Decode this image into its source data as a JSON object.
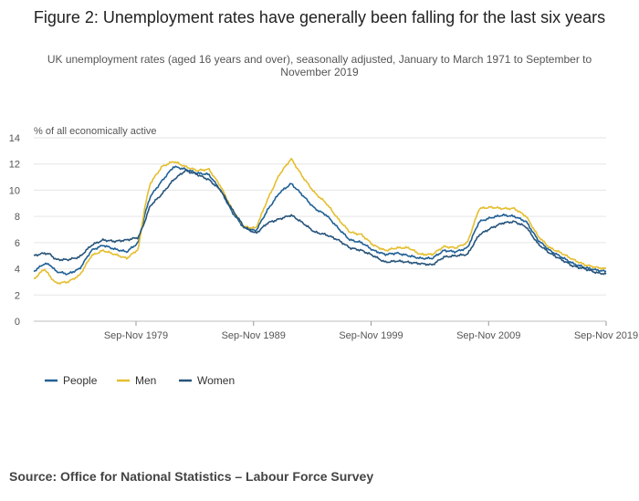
{
  "figure": {
    "title": "Figure 2: Unemployment rates have generally been falling for the last six years",
    "subtitle": "UK unemployment rates (aged 16 years and over), seasonally adjusted, January to March 1971 to September to November 2019",
    "source": "Source: Office for National Statistics – Labour Force Survey"
  },
  "chart_data": {
    "type": "line",
    "ylabel": "% of all economically active",
    "xlabel": "",
    "ylim": [
      0,
      14
    ],
    "yticks": [
      0,
      2,
      4,
      6,
      8,
      10,
      12,
      14
    ],
    "xlim": [
      1971.1,
      2019.8
    ],
    "xticks": [
      {
        "x": 1979.8,
        "label": "Sep-Nov 1979"
      },
      {
        "x": 1989.8,
        "label": "Sep-Nov 1989"
      },
      {
        "x": 1999.8,
        "label": "Sep-Nov 1999"
      },
      {
        "x": 2009.8,
        "label": "Sep-Nov 2009"
      },
      {
        "x": 2019.8,
        "label": "Sep-Nov 2019"
      }
    ],
    "grid": true,
    "legend_position": "bottom-left",
    "x": [
      1971.1,
      1972,
      1972.5,
      1973,
      1974,
      1975,
      1976,
      1977,
      1978,
      1979,
      1980,
      1980.5,
      1981,
      1982,
      1983,
      1984,
      1985,
      1986,
      1987,
      1988,
      1989,
      1990,
      1991,
      1992,
      1993,
      1994,
      1995,
      1996,
      1997,
      1998,
      1999,
      2000,
      2001,
      2002,
      2003,
      2004,
      2005,
      2006,
      2007,
      2008,
      2009,
      2010,
      2011,
      2012,
      2013,
      2014,
      2015,
      2016,
      2017,
      2018,
      2019,
      2019.8
    ],
    "series": [
      {
        "name": "People",
        "color": "#206095",
        "values": [
          3.8,
          4.4,
          4.3,
          3.8,
          3.6,
          4.0,
          5.4,
          5.8,
          5.5,
          5.3,
          6.0,
          8.0,
          9.5,
          10.7,
          11.8,
          11.6,
          11.3,
          11.2,
          10.0,
          8.3,
          7.1,
          6.9,
          8.5,
          9.8,
          10.5,
          9.6,
          8.6,
          8.1,
          7.1,
          6.2,
          6.0,
          5.4,
          5.1,
          5.2,
          5.0,
          4.8,
          4.8,
          5.4,
          5.3,
          5.6,
          7.6,
          7.9,
          8.1,
          8.0,
          7.6,
          6.2,
          5.4,
          4.9,
          4.4,
          4.1,
          3.9,
          3.8
        ]
      },
      {
        "name": "Men",
        "color": "#e5be2f",
        "values": [
          3.2,
          4.0,
          3.4,
          2.9,
          3.0,
          3.5,
          5.0,
          5.4,
          5.1,
          4.8,
          5.5,
          8.5,
          10.5,
          11.8,
          12.2,
          11.8,
          11.5,
          11.6,
          10.3,
          8.5,
          7.2,
          7.1,
          9.3,
          11.2,
          12.4,
          11.0,
          9.8,
          9.0,
          7.8,
          6.8,
          6.6,
          5.8,
          5.4,
          5.6,
          5.6,
          5.1,
          5.1,
          5.7,
          5.6,
          6.0,
          8.6,
          8.7,
          8.6,
          8.6,
          8.0,
          6.5,
          5.6,
          5.2,
          4.7,
          4.3,
          4.1,
          4.0
        ]
      },
      {
        "name": "Women",
        "color": "#27547a",
        "values": [
          5.0,
          5.2,
          5.1,
          4.7,
          4.7,
          4.9,
          5.8,
          6.2,
          6.1,
          6.2,
          6.4,
          7.5,
          8.8,
          9.7,
          10.8,
          11.5,
          11.2,
          10.8,
          10.0,
          8.5,
          7.2,
          6.7,
          7.5,
          7.8,
          8.1,
          7.5,
          6.8,
          6.6,
          6.2,
          5.6,
          5.4,
          5.0,
          4.5,
          4.6,
          4.5,
          4.4,
          4.3,
          4.9,
          5.0,
          5.1,
          6.6,
          7.1,
          7.5,
          7.6,
          7.2,
          5.9,
          5.2,
          4.7,
          4.2,
          4.0,
          3.7,
          3.6
        ]
      }
    ]
  }
}
